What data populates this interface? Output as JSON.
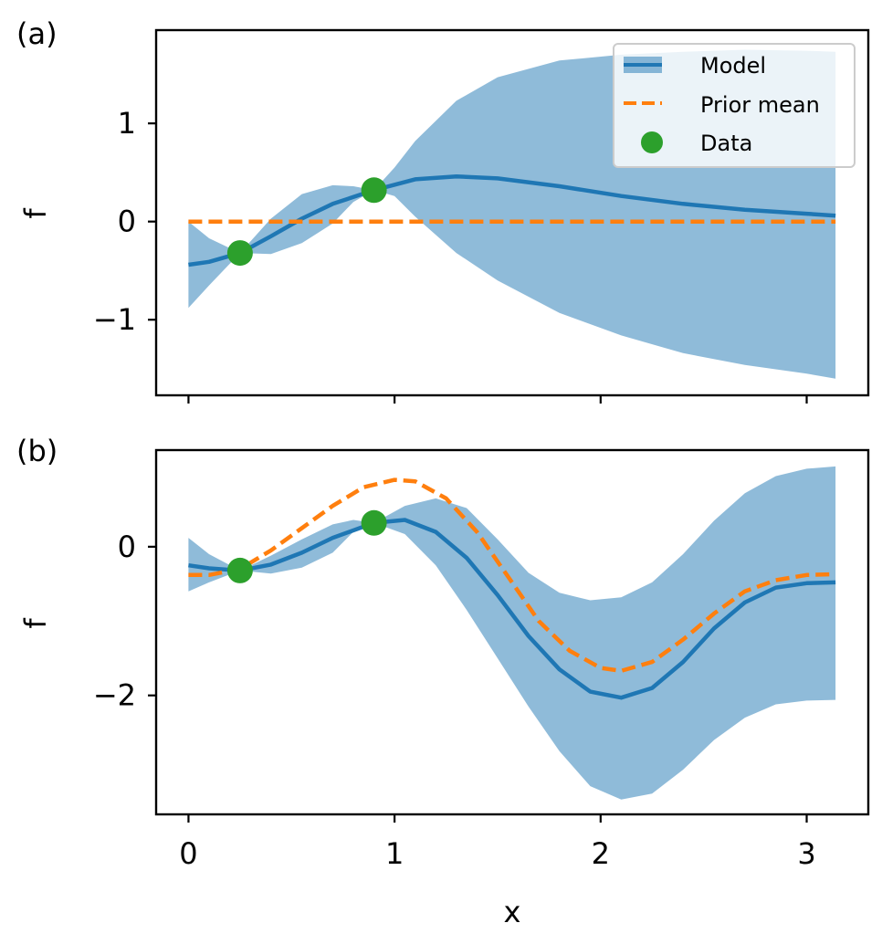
{
  "chart_data": [
    {
      "type": "line",
      "panel_label": "(a)",
      "xlabel": "",
      "ylabel": "f",
      "xlim": [
        -0.157,
        3.299
      ],
      "ylim": [
        -1.77,
        1.95
      ],
      "xticks": [
        0,
        1,
        2,
        3
      ],
      "xtick_labels_visible": false,
      "yticks": [
        -1,
        0,
        1
      ],
      "ytick_labels": [
        "−1",
        "0",
        "1"
      ],
      "legend": {
        "placement": "top-right",
        "entries": [
          "Model",
          "Prior mean",
          "Data"
        ]
      },
      "series": [
        {
          "name": "Model",
          "kind": "line",
          "color": "#1f77b4",
          "x": [
            0,
            0.1,
            0.25,
            0.4,
            0.55,
            0.7,
            0.9,
            1.1,
            1.3,
            1.5,
            1.8,
            2.1,
            2.4,
            2.7,
            3.0,
            3.14
          ],
          "y": [
            -0.44,
            -0.41,
            -0.32,
            -0.15,
            0.03,
            0.18,
            0.32,
            0.43,
            0.46,
            0.44,
            0.36,
            0.26,
            0.18,
            0.12,
            0.08,
            0.06
          ]
        },
        {
          "name": "Model band",
          "kind": "band",
          "color": "#1f77b4",
          "x": [
            0,
            0.1,
            0.25,
            0.4,
            0.55,
            0.7,
            0.8,
            0.9,
            1.0,
            1.1,
            1.3,
            1.5,
            1.8,
            2.1,
            2.4,
            2.7,
            3.0,
            3.14
          ],
          "upper": [
            0.0,
            -0.17,
            -0.32,
            0.03,
            0.28,
            0.37,
            0.36,
            0.32,
            0.55,
            0.82,
            1.23,
            1.47,
            1.64,
            1.7,
            1.73,
            1.75,
            1.74,
            1.73
          ],
          "lower": [
            -0.88,
            -0.65,
            -0.32,
            -0.33,
            -0.22,
            -0.02,
            0.2,
            0.32,
            0.26,
            0.05,
            -0.32,
            -0.6,
            -0.93,
            -1.16,
            -1.34,
            -1.46,
            -1.55,
            -1.6
          ]
        },
        {
          "name": "Prior mean",
          "kind": "dashed",
          "color": "#ff7f0e",
          "x": [
            0,
            3.14
          ],
          "y": [
            0,
            0
          ]
        },
        {
          "name": "Data",
          "kind": "points",
          "color": "#2ca02c",
          "x": [
            0.25,
            0.9
          ],
          "y": [
            -0.32,
            0.32
          ]
        }
      ]
    },
    {
      "type": "line",
      "panel_label": "(b)",
      "xlabel": "x",
      "ylabel": "f",
      "xlim": [
        -0.157,
        3.299
      ],
      "ylim": [
        -3.6,
        1.3
      ],
      "xticks": [
        0,
        1,
        2,
        3
      ],
      "xtick_labels": [
        "0",
        "1",
        "2",
        "3"
      ],
      "yticks": [
        -2,
        0
      ],
      "ytick_labels": [
        "−2",
        "0"
      ],
      "series": [
        {
          "name": "Model",
          "kind": "line",
          "color": "#1f77b4",
          "x": [
            0,
            0.1,
            0.25,
            0.4,
            0.55,
            0.7,
            0.9,
            1.05,
            1.2,
            1.35,
            1.5,
            1.65,
            1.8,
            1.95,
            2.1,
            2.25,
            2.4,
            2.55,
            2.7,
            2.85,
            3.0,
            3.14
          ],
          "y": [
            -0.25,
            -0.29,
            -0.32,
            -0.24,
            -0.08,
            0.12,
            0.32,
            0.36,
            0.2,
            -0.15,
            -0.65,
            -1.2,
            -1.65,
            -1.95,
            -2.03,
            -1.9,
            -1.55,
            -1.1,
            -0.75,
            -0.55,
            -0.49,
            -0.48
          ]
        },
        {
          "name": "Model band",
          "kind": "band",
          "color": "#1f77b4",
          "x": [
            0,
            0.1,
            0.25,
            0.4,
            0.55,
            0.7,
            0.8,
            0.9,
            1.05,
            1.2,
            1.35,
            1.5,
            1.65,
            1.8,
            1.95,
            2.1,
            2.25,
            2.4,
            2.55,
            2.7,
            2.85,
            3.0,
            3.14
          ],
          "upper": [
            0.12,
            -0.1,
            -0.32,
            -0.12,
            0.1,
            0.3,
            0.36,
            0.32,
            0.55,
            0.65,
            0.52,
            0.1,
            -0.35,
            -0.62,
            -0.72,
            -0.68,
            -0.48,
            -0.1,
            0.35,
            0.72,
            0.95,
            1.05,
            1.08
          ],
          "lower": [
            -0.6,
            -0.48,
            -0.32,
            -0.36,
            -0.28,
            -0.08,
            0.2,
            0.32,
            0.17,
            -0.25,
            -0.85,
            -1.5,
            -2.15,
            -2.75,
            -3.22,
            -3.4,
            -3.32,
            -3.0,
            -2.6,
            -2.3,
            -2.12,
            -2.07,
            -2.06
          ]
        },
        {
          "name": "Prior mean",
          "kind": "dashed",
          "color": "#ff7f0e",
          "x": [
            0,
            0.1,
            0.25,
            0.4,
            0.55,
            0.7,
            0.85,
            1.0,
            1.1,
            1.25,
            1.4,
            1.55,
            1.7,
            1.85,
            2.0,
            2.1,
            2.25,
            2.4,
            2.55,
            2.7,
            2.85,
            3.0,
            3.14
          ],
          "y": [
            -0.38,
            -0.38,
            -0.3,
            -0.05,
            0.25,
            0.55,
            0.8,
            0.9,
            0.88,
            0.65,
            0.2,
            -0.4,
            -1.0,
            -1.4,
            -1.63,
            -1.67,
            -1.55,
            -1.25,
            -0.9,
            -0.6,
            -0.45,
            -0.38,
            -0.37
          ]
        },
        {
          "name": "Data",
          "kind": "points",
          "color": "#2ca02c",
          "x": [
            0.25,
            0.9
          ],
          "y": [
            -0.32,
            0.32
          ]
        }
      ]
    }
  ]
}
